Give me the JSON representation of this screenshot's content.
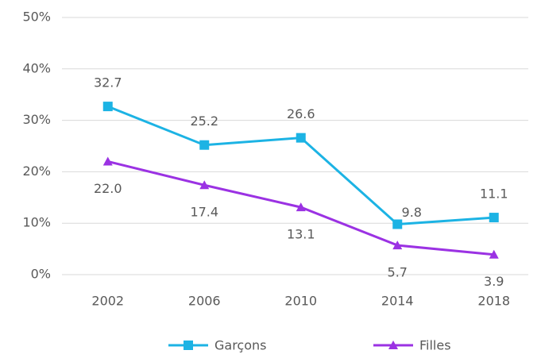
{
  "chart_data": {
    "type": "line",
    "categories": [
      "2002",
      "2006",
      "2010",
      "2014",
      "2018"
    ],
    "series": [
      {
        "name": "Garçons",
        "color": "#1cb3e4",
        "marker": "square",
        "values": [
          32.7,
          25.2,
          26.6,
          9.8,
          11.1
        ],
        "value_labels": [
          "32.7",
          "25.2",
          "26.6",
          "9.8",
          "11.1"
        ]
      },
      {
        "name": "Filles",
        "color": "#9b32e3",
        "marker": "triangle",
        "values": [
          22.0,
          17.4,
          13.1,
          5.7,
          3.9
        ],
        "value_labels": [
          "22.0",
          "17.4",
          "13.1",
          "5.7",
          "3.9"
        ]
      }
    ],
    "ylim": [
      0,
      50
    ],
    "yticks": [
      {
        "value": 0,
        "label": "0%"
      },
      {
        "value": 10,
        "label": "10%"
      },
      {
        "value": 20,
        "label": "20%"
      },
      {
        "value": 30,
        "label": "30%"
      },
      {
        "value": 40,
        "label": "40%"
      },
      {
        "value": 50,
        "label": "50%"
      }
    ],
    "grid": true,
    "legend": "bottom"
  }
}
